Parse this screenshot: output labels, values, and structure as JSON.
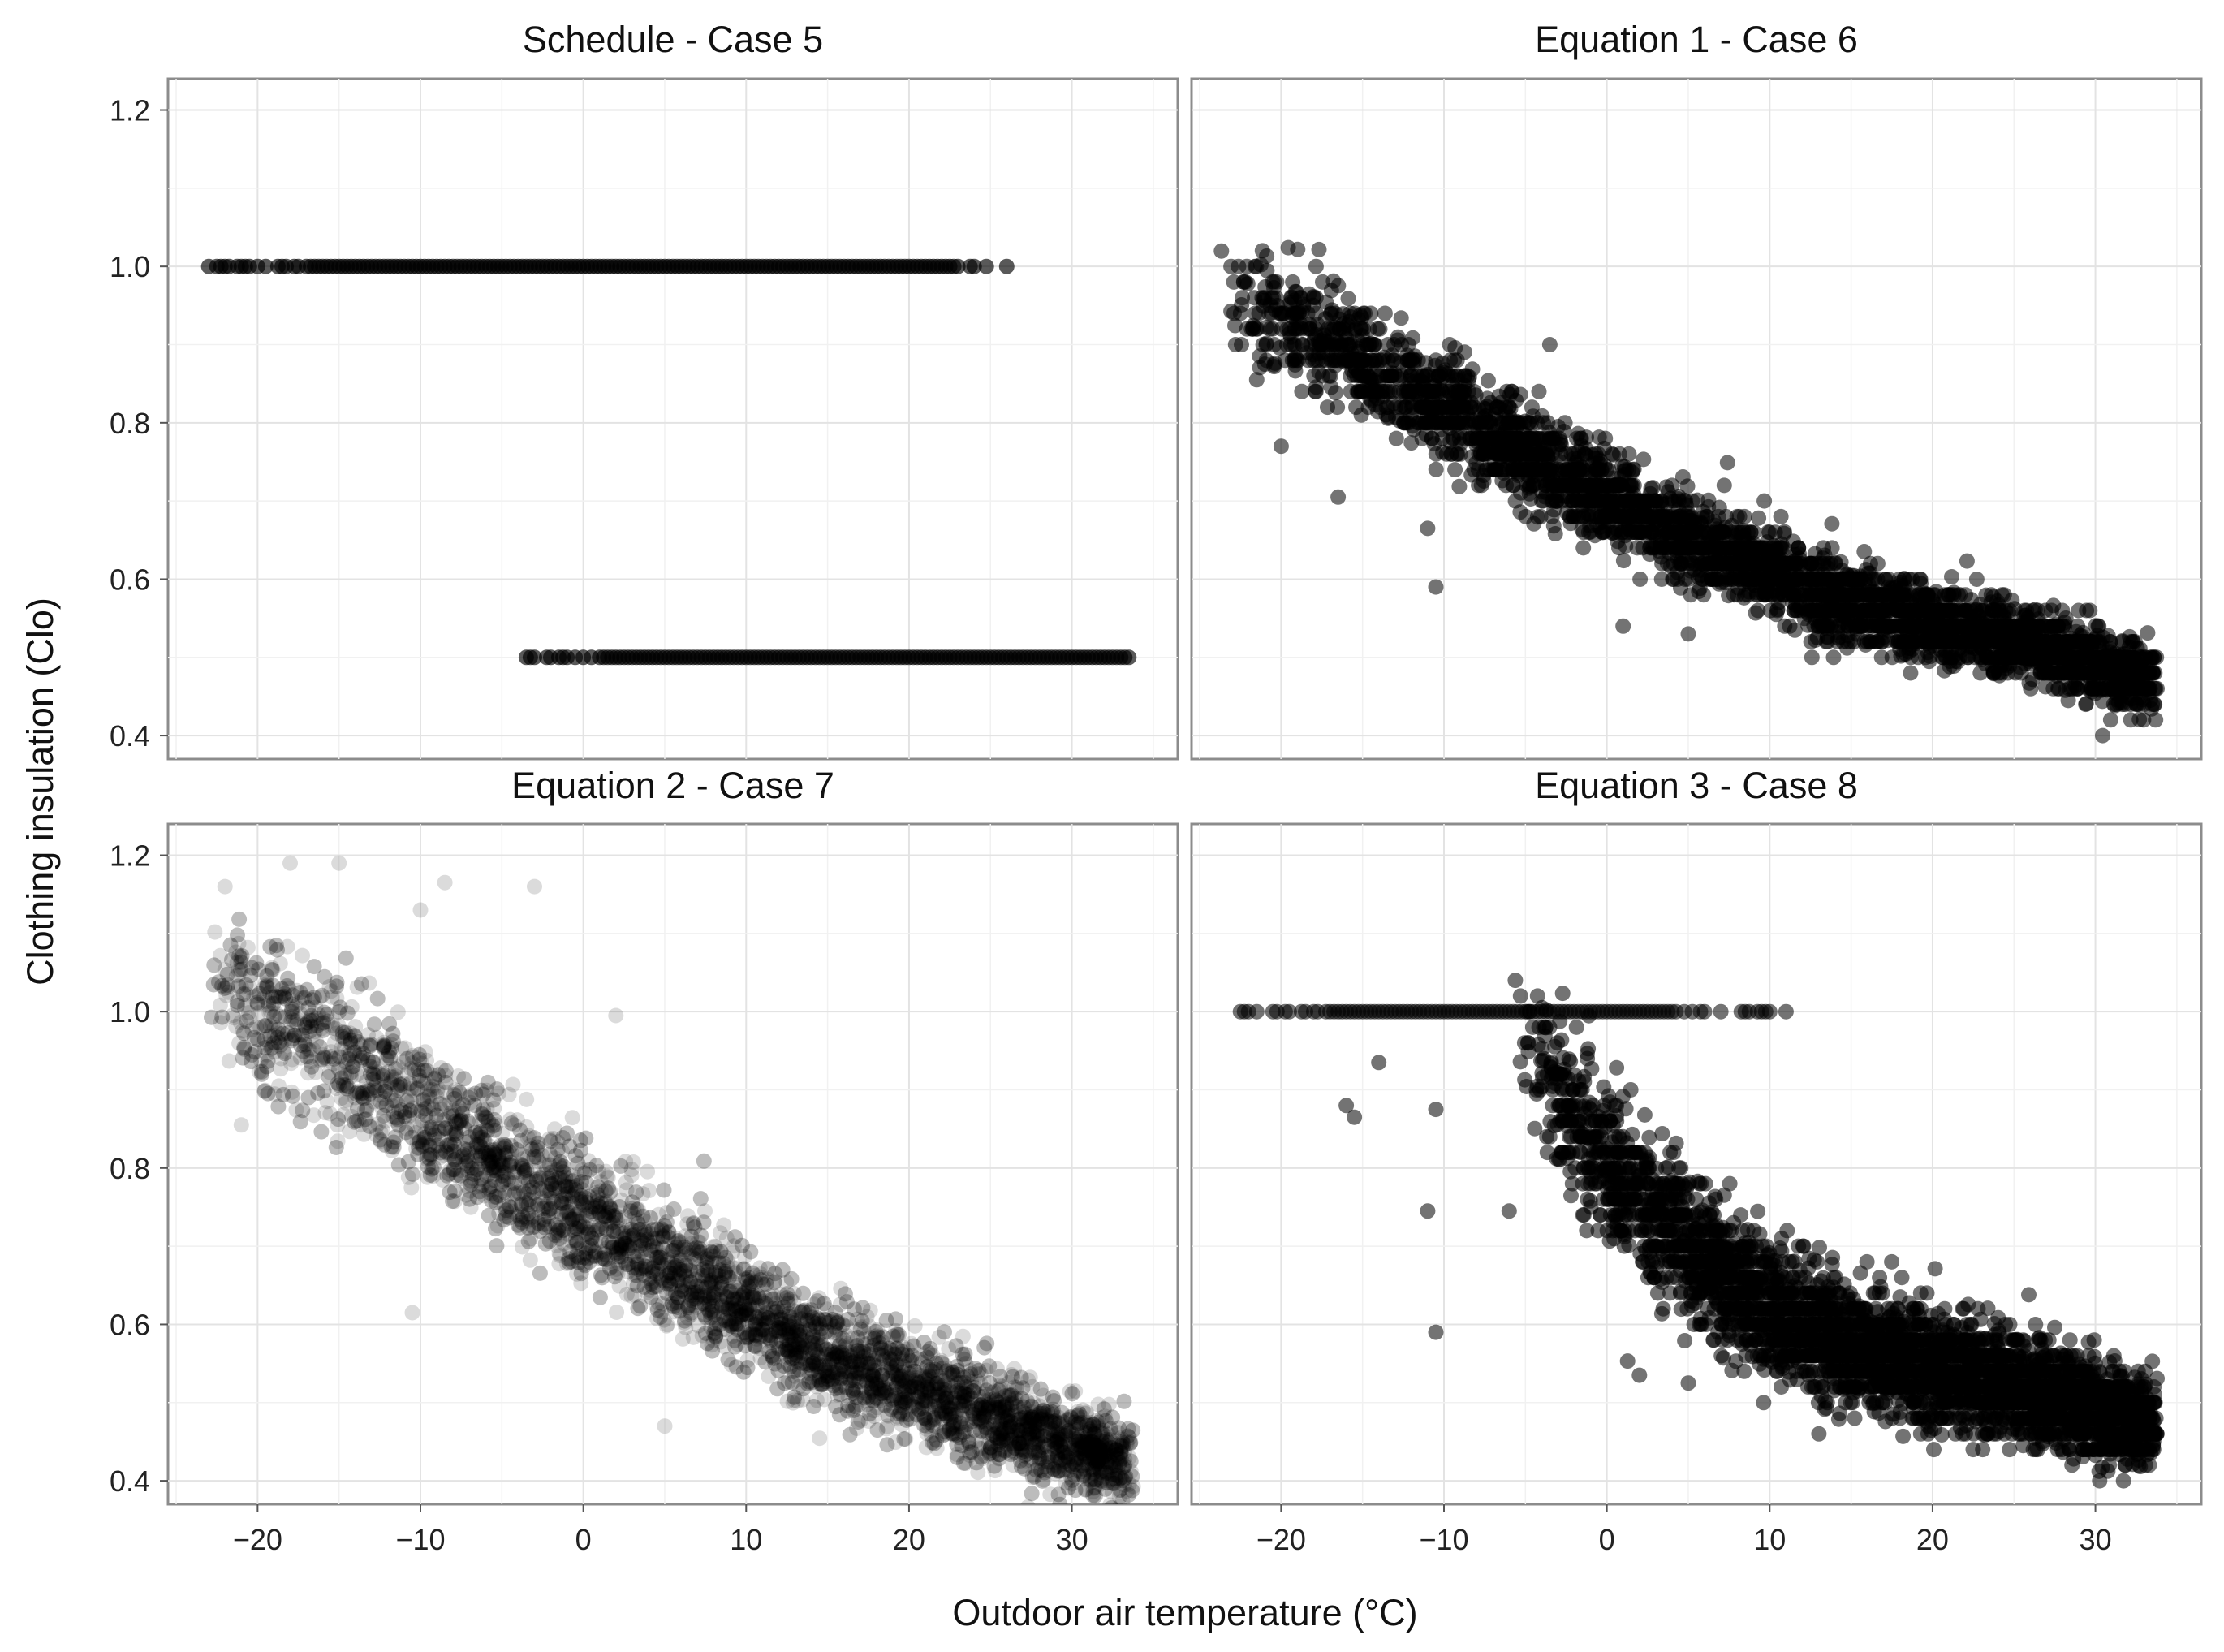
{
  "figure": {
    "xlabel": "Outdoor air temperature (°C)",
    "ylabel": "Clothing insulation (Clo)",
    "point_color": "#000000",
    "frame_color": "#8c8c8c",
    "grid_color": "#e3e3e3"
  },
  "chart_data": [
    {
      "type": "scatter",
      "title": "Schedule - Case 5",
      "xlabel": "Outdoor air temperature (°C)",
      "ylabel": "Clothing insulation (Clo)",
      "xlim": [
        -25.5,
        36.5
      ],
      "ylim": [
        0.37,
        1.24
      ],
      "xticks": [
        -20,
        -10,
        0,
        10,
        20,
        30
      ],
      "yticks": [
        0.4,
        0.6,
        0.8,
        1.0,
        1.2
      ],
      "xtick_labels": [
        "−20",
        "−10",
        "0",
        "10",
        "20",
        "30"
      ],
      "ytick_labels": [
        "0.4",
        "0.6",
        "0.8",
        "1.0",
        "1.2"
      ],
      "grid": true,
      "point_alpha": 0.65,
      "description_of_series": "two horizontal bands of points",
      "series": [
        {
          "y": 1.0,
          "x_range": [
            -23,
            26
          ],
          "x_dense_range": [
            -17,
            23
          ]
        },
        {
          "y": 0.5,
          "x_range": [
            -3.5,
            34
          ],
          "x_dense_range": [
            1,
            33.5
          ]
        }
      ]
    },
    {
      "type": "scatter",
      "title": "Equation 1 - Case 6",
      "xlim": [
        -25.5,
        36.5
      ],
      "ylim": [
        0.37,
        1.24
      ],
      "xticks": [
        -20,
        -10,
        0,
        10,
        20,
        30
      ],
      "yticks": [
        0.4,
        0.6,
        0.8,
        1.0,
        1.2
      ],
      "xtick_labels": [
        "−20",
        "−10",
        "0",
        "10",
        "20",
        "30"
      ],
      "grid": true,
      "point_alpha": 0.55,
      "trend": {
        "x": [
          -23,
          -15,
          -5,
          5,
          15,
          25,
          33.5
        ],
        "y": [
          0.96,
          0.88,
          0.76,
          0.65,
          0.57,
          0.52,
          0.47
        ]
      },
      "outliers": [
        {
          "x": -21.5,
          "y": 0.855
        },
        {
          "x": -21,
          "y": 0.875
        },
        {
          "x": -20,
          "y": 0.77
        },
        {
          "x": -16.5,
          "y": 0.705
        },
        {
          "x": -10.5,
          "y": 0.59
        },
        {
          "x": -11,
          "y": 0.665
        },
        {
          "x": -3.5,
          "y": 0.9
        },
        {
          "x": 1,
          "y": 0.54
        },
        {
          "x": 5,
          "y": 0.53
        }
      ]
    },
    {
      "type": "scatter",
      "title": "Equation 2 - Case 7",
      "xlim": [
        -25.5,
        36.5
      ],
      "ylim": [
        0.37,
        1.24
      ],
      "xticks": [
        -20,
        -10,
        0,
        10,
        20,
        30
      ],
      "yticks": [
        0.4,
        0.6,
        0.8,
        1.0,
        1.2
      ],
      "xtick_labels": [
        "−20",
        "−10",
        "0",
        "10",
        "20",
        "30"
      ],
      "ytick_labels": [
        "0.4",
        "0.6",
        "0.8",
        "1.0",
        "1.2"
      ],
      "grid": true,
      "point_alpha": 0.14,
      "trend": {
        "x": [
          -23,
          -15,
          -5,
          5,
          15,
          25,
          33.5
        ],
        "y": [
          1.04,
          0.94,
          0.8,
          0.68,
          0.56,
          0.48,
          0.42
        ]
      },
      "outliers": [
        {
          "x": -18,
          "y": 1.19
        },
        {
          "x": -15,
          "y": 1.19
        },
        {
          "x": -22,
          "y": 1.16
        },
        {
          "x": -8.5,
          "y": 1.165
        },
        {
          "x": -3,
          "y": 1.16
        },
        {
          "x": -10,
          "y": 1.13
        },
        {
          "x": 2,
          "y": 0.995
        },
        {
          "x": -21,
          "y": 0.855
        },
        {
          "x": -10.5,
          "y": 0.615
        },
        {
          "x": 5,
          "y": 0.47
        }
      ]
    },
    {
      "type": "scatter",
      "title": "Equation 3 - Case 8",
      "xlim": [
        -25.5,
        36.5
      ],
      "ylim": [
        0.37,
        1.24
      ],
      "xticks": [
        -20,
        -10,
        0,
        10,
        20,
        30
      ],
      "yticks": [
        0.4,
        0.6,
        0.8,
        1.0,
        1.2
      ],
      "xtick_labels": [
        "−20",
        "−10",
        "0",
        "10",
        "20",
        "30"
      ],
      "grid": true,
      "point_alpha": 0.55,
      "band_at_1": {
        "y": 1.0,
        "x_range": [
          -23,
          11
        ]
      },
      "trend": {
        "x": [
          -5,
          0,
          5,
          10,
          15,
          25,
          33.5
        ],
        "y": [
          0.96,
          0.8,
          0.7,
          0.62,
          0.57,
          0.52,
          0.47
        ]
      },
      "outliers": [
        {
          "x": -14,
          "y": 0.935
        },
        {
          "x": -16,
          "y": 0.88
        },
        {
          "x": -15.5,
          "y": 0.865
        },
        {
          "x": -11,
          "y": 0.745
        },
        {
          "x": -10.5,
          "y": 0.59
        },
        {
          "x": -10.5,
          "y": 0.875
        },
        {
          "x": -6,
          "y": 0.745
        },
        {
          "x": 2,
          "y": 0.535
        },
        {
          "x": 5,
          "y": 0.525
        }
      ]
    }
  ]
}
